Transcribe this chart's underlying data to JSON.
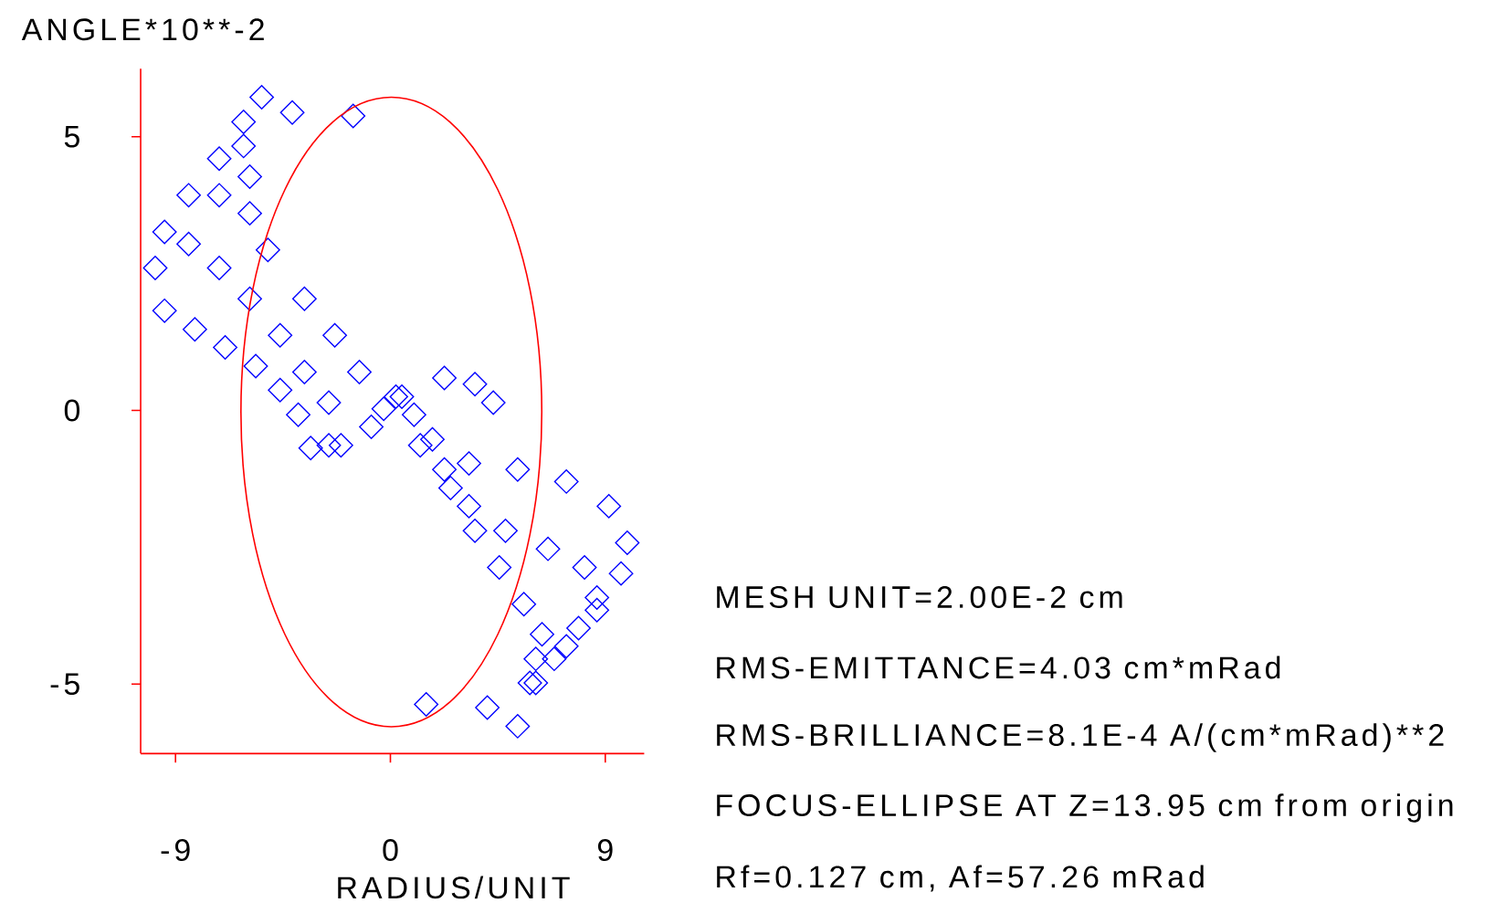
{
  "chart_data": {
    "type": "scatter",
    "xlabel": "RADIUS/UNIT",
    "ylabel": "ANGLE*10**-2",
    "xlim": [
      -10.46,
      10.63
    ],
    "ylim": [
      -6.27,
      6.24
    ],
    "xticks": [
      -9,
      0,
      9
    ],
    "yticks": [
      -5,
      0,
      5
    ],
    "grid": false,
    "series": [
      {
        "marker": "diamond",
        "color": "#0000ff",
        "x": [
          -1.56,
          -4.11,
          -5.39,
          1.5,
          4.06,
          5.33,
          -6.15,
          -7.17,
          -8.45,
          -9.46,
          -9.85,
          -9.46,
          -8.19,
          -6.92,
          -5.64,
          -4.62,
          -3.86,
          -3.34,
          0.48,
          1.76,
          3.29,
          5.33,
          7.37,
          9.15,
          9.92,
          9.66,
          8.65,
          7.37,
          6.09,
          -8.45,
          -7.17,
          -5.89,
          -4.62,
          -3.6,
          -2.58,
          -2.58,
          -7.17,
          -6.15,
          0.99,
          2.26,
          3.29,
          4.82,
          6.6,
          8.13,
          8.65,
          7.88,
          6.86,
          5.84,
          -5.89,
          -5.89,
          -5.13,
          -3.6,
          -2.33,
          -1.3,
          -0.28,
          -0.8,
          0.23,
          1.25,
          2.52,
          3.54,
          4.56,
          5.59,
          6.35,
          6.09,
          2.26,
          3.54,
          4.31,
          -2.07
        ],
        "values": [
          5.38,
          5.44,
          5.72,
          -5.37,
          -5.43,
          -5.77,
          5.27,
          4.6,
          3.93,
          3.26,
          2.6,
          1.82,
          1.48,
          1.15,
          0.81,
          0.37,
          -0.08,
          -0.69,
          0.25,
          -0.53,
          -0.97,
          -1.08,
          -1.3,
          -1.75,
          -2.42,
          -2.98,
          -3.65,
          -4.31,
          -4.98,
          3.04,
          2.6,
          2.04,
          1.37,
          0.7,
          0.14,
          -0.64,
          3.93,
          4.83,
          -0.08,
          -1.08,
          -1.75,
          -2.2,
          -2.53,
          -2.87,
          -3.42,
          -3.98,
          -4.54,
          -4.98,
          4.27,
          3.6,
          2.93,
          2.04,
          1.37,
          0.7,
          0.03,
          -0.3,
          0.25,
          -0.64,
          -1.42,
          -2.2,
          -2.87,
          -3.54,
          -4.09,
          -4.54,
          0.59,
          0.48,
          0.14,
          -0.64
        ]
      }
    ],
    "annotations": [
      "MESH UNIT=2.00E-2 cm",
      "RMS-EMITTANCE=4.03 cm*mRad",
      "RMS-BRILLIANCE=8.1E-4 A/(cm*mRad)**2",
      "FOCUS-ELLIPSE AT Z=13.95 cm from origin",
      "Rf=0.127 cm, Af=57.26 mRad"
    ]
  }
}
